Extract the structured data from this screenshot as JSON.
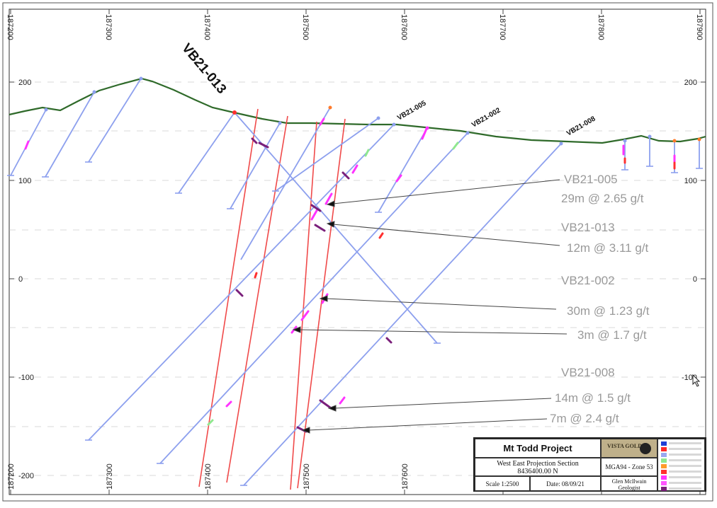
{
  "axis": {
    "top_ticks": [
      "187200",
      "187300",
      "187400",
      "187500",
      "187600",
      "187700",
      "187800",
      "187900"
    ],
    "bottom_ticks": [
      "187200",
      "187300",
      "187400",
      "187500",
      "187600"
    ],
    "left_ticks": [
      "200",
      "100",
      "0",
      "-100",
      "-200"
    ],
    "right_ticks": [
      "200",
      "100",
      "0",
      "-100"
    ]
  },
  "holes": {
    "main_label": "VB21-013",
    "collar_labels": [
      "VB21-005",
      "VB21-002",
      "VB21-008"
    ]
  },
  "annotations": [
    {
      "hole": "VB21-005",
      "text": "29m @ 2.65 g/t"
    },
    {
      "hole": "VB21-013",
      "text": "12m @ 3.11 g/t"
    },
    {
      "hole": "VB21-002",
      "text": "30m @ 1.23 g/t"
    },
    {
      "hole": "",
      "text": "3m @ 1.7 g/t"
    },
    {
      "hole": "VB21-008",
      "text": "14m @ 1.5 g/t"
    },
    {
      "hole": "",
      "text": "7m @ 2.4 g/t"
    }
  ],
  "title_block": {
    "project": "Mt Todd Project",
    "section": "West East Projection Section",
    "northing": "8436400.00 N",
    "logo": "VISTA GOLD",
    "grid": "MGA94 - Zone 53",
    "scale": "Scale 1:2500",
    "date": "Date: 08/09/21",
    "author": "Glen McIlwain",
    "role": "Geologist"
  },
  "legend_colors": [
    "#1f3fd6",
    "#ff2a2a",
    "#9aa8f0",
    "#8fe88f",
    "#ff9a2a",
    "#ff3030",
    "#ff33ff",
    "#ff55ff",
    "#7a1f7a"
  ],
  "colors": {
    "topo": "#2f6a2a",
    "hole": "#8da0ee",
    "fault": "#f04a4a",
    "grid": "#b5b5b5",
    "annotation": "#9a9a9a"
  }
}
